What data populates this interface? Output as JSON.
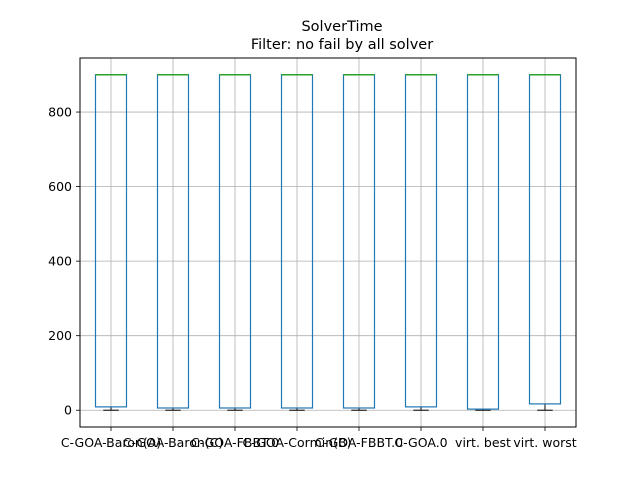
{
  "chart_data": {
    "type": "box",
    "title": "SolverTime",
    "subtitle": "Filter: no fail by all solver",
    "xlabel": "",
    "ylabel": "",
    "ylim": [
      -45,
      945
    ],
    "yticks": [
      0,
      200,
      400,
      600,
      800
    ],
    "grid": true,
    "categories": [
      "C-GOA-Baron(A)",
      "C-GOA-Baron(C)",
      "C-GOA-FBBT.0",
      "C-GOA-Cormin(B)",
      "C-GOA-FBBT.0",
      "C-GOA.0",
      "virt. best",
      "virt. worst"
    ],
    "boxes": [
      {
        "whislo": 0,
        "q1": 9,
        "med": 900,
        "q3": 900,
        "whishi": 900
      },
      {
        "whislo": 0,
        "q1": 6,
        "med": 900,
        "q3": 900,
        "whishi": 900
      },
      {
        "whislo": 0,
        "q1": 6,
        "med": 900,
        "q3": 900,
        "whishi": 900
      },
      {
        "whislo": 0,
        "q1": 6,
        "med": 900,
        "q3": 900,
        "whishi": 900
      },
      {
        "whislo": 0,
        "q1": 6,
        "med": 900,
        "q3": 900,
        "whishi": 900
      },
      {
        "whislo": 0,
        "q1": 9,
        "med": 900,
        "q3": 900,
        "whishi": 900
      },
      {
        "whislo": 0,
        "q1": 3,
        "med": 900,
        "q3": 900,
        "whishi": 900
      },
      {
        "whislo": 0,
        "q1": 17,
        "med": 900,
        "q3": 900,
        "whishi": 900
      }
    ],
    "colors": {
      "box": "#1f77b4",
      "median": "#2ca02c",
      "grid": "#b0b0b0",
      "whisker": "#000000"
    }
  }
}
